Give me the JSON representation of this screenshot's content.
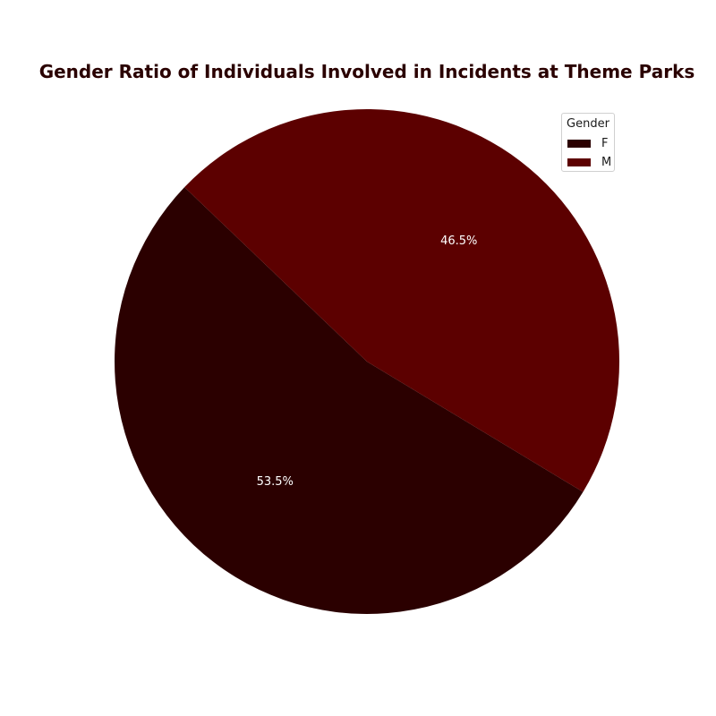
{
  "chart_data": {
    "type": "pie",
    "title": "Gender Ratio of Individuals Involved in Incidents at Theme Parks",
    "legend": {
      "title": "Gender",
      "placement": "top-right"
    },
    "slices": [
      {
        "label": "F",
        "value": 53.5,
        "pct_label": "53.5%",
        "color": "#2b0000"
      },
      {
        "label": "M",
        "value": 46.5,
        "pct_label": "46.5%",
        "color": "#5c0000"
      }
    ]
  }
}
